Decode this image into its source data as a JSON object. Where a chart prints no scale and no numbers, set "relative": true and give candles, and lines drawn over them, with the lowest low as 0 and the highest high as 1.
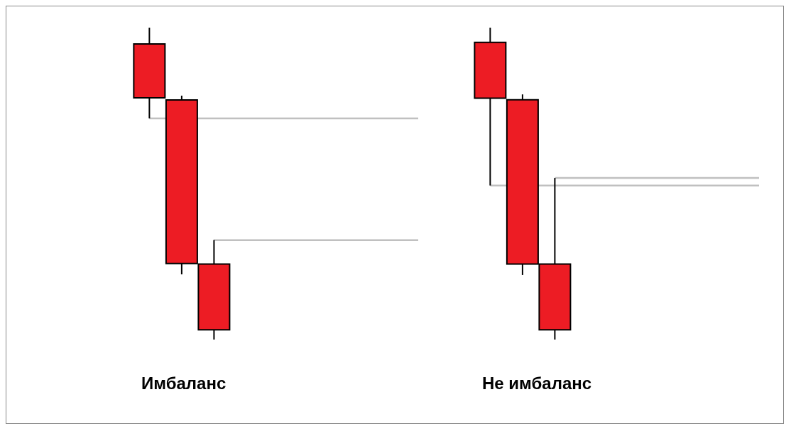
{
  "chart_data": [
    {
      "type": "candlestick",
      "title": "Имбаланс",
      "relative": true,
      "categories": [
        null,
        null,
        null
      ],
      "color": "#ed1c24",
      "ohlc": [
        [
          0.948,
          1,
          0.709,
          0.775
        ],
        [
          0.768,
          0.782,
          0.209,
          0.244
        ],
        [
          0.242,
          0.319,
          0,
          0.031
        ]
      ],
      "ref_lines": [
        {
          "axis": "y",
          "value": 0.709,
          "color": "#c0c0c0"
        },
        {
          "axis": "y",
          "value": 0.319,
          "color": "#c0c0c0"
        }
      ]
    },
    {
      "type": "candlestick",
      "title": "Не имбаланс",
      "relative": true,
      "categories": [
        null,
        null,
        null
      ],
      "color": "#ed1c24",
      "ohlc": [
        [
          0.953,
          1,
          0.494,
          0.774
        ],
        [
          0.769,
          0.786,
          0.207,
          0.242
        ],
        [
          0.242,
          0.518,
          0,
          0.031
        ]
      ],
      "ref_lines": [
        {
          "axis": "y",
          "value": 0.494,
          "color": "#c0c0c0"
        },
        {
          "axis": "y",
          "value": 0.518,
          "color": "#c0c0c0"
        }
      ]
    }
  ]
}
